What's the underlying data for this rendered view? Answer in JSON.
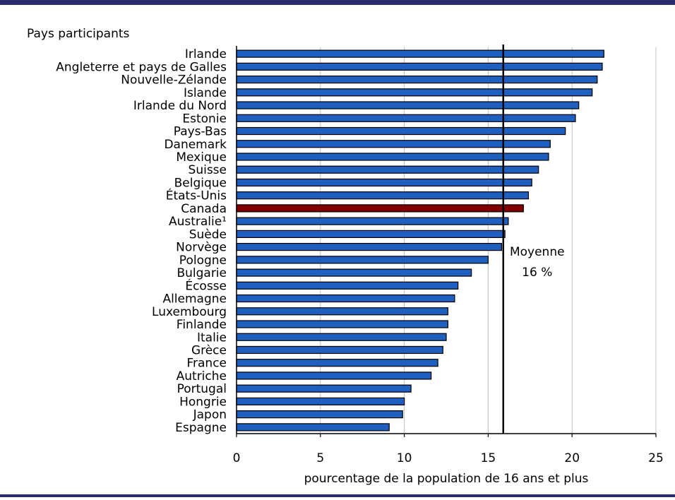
{
  "chart_data": {
    "type": "bar",
    "orientation": "horizontal",
    "title": "",
    "categories_title": "Pays participants",
    "xlabel": "pourcentage de la population de 16 ans et plus",
    "ylabel": "",
    "xlim": [
      0,
      25
    ],
    "xticks": [
      "0",
      "5",
      "10",
      "15",
      "20",
      "25"
    ],
    "grid": "vertical",
    "categories": [
      "Irlande",
      "Angleterre et pays de Galles",
      "Nouvelle-Zélande",
      "Islande",
      "Irlande du Nord",
      "Estonie",
      "Pays-Bas",
      "Danemark",
      "Mexique",
      "Suisse",
      "Belgique",
      "États-Unis",
      "Canada",
      "Australie¹",
      "Suède",
      "Norvège",
      "Pologne",
      "Bulgarie",
      "Écosse",
      "Allemagne",
      "Luxembourg",
      "Finlande",
      "Italie",
      "Grèce",
      "France",
      "Autriche",
      "Portugal",
      "Hongrie",
      "Japon",
      "Espagne"
    ],
    "values": [
      21.9,
      21.8,
      21.5,
      21.2,
      20.4,
      20.2,
      19.6,
      18.7,
      18.6,
      18.0,
      17.6,
      17.4,
      17.1,
      16.2,
      16.0,
      15.8,
      15.0,
      14.0,
      13.2,
      13.0,
      12.6,
      12.6,
      12.5,
      12.3,
      12.0,
      11.6,
      10.4,
      10.0,
      9.9,
      9.1
    ],
    "highlight": "Canada",
    "colors": {
      "bar": "#1f5fbf",
      "bar_highlight": "#800000",
      "bar_edge": "#000000",
      "grid": "#c0c0c0",
      "reference_line": "#000000"
    },
    "reference_line": {
      "value": 15.9,
      "label_line1": "Moyenne",
      "label_line2": "16 %"
    }
  },
  "rules": {
    "color": "#2b2c6e"
  }
}
